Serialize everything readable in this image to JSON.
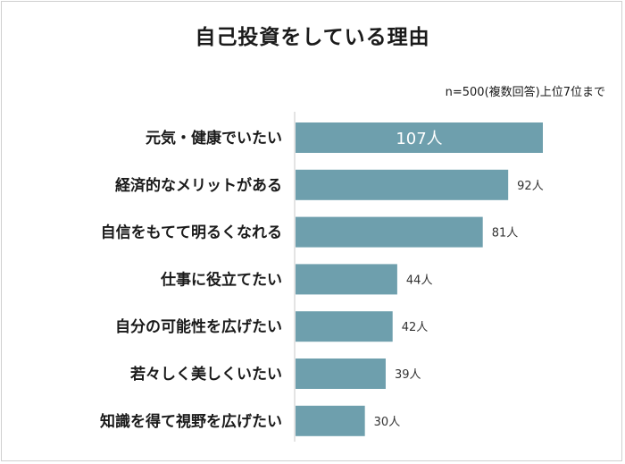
{
  "title": "自己投資をしている理由",
  "note": "n=500(複数回答)上位7位まで",
  "colors": {
    "bar": "#6e9fad",
    "axis": "#c8c8c8"
  },
  "chart_data": {
    "type": "bar",
    "orientation": "horizontal",
    "title": "自己投資をしている理由",
    "unit": "人",
    "categories": [
      "元気・健康でいたい",
      "経済的なメリットがある",
      "自信をもてて明るくなれる",
      "仕事に役立てたい",
      "自分の可能性を広げたい",
      "若々しく美しくいたい",
      "知識を得て視野を広げたい"
    ],
    "values": [
      107,
      92,
      81,
      44,
      42,
      39,
      30
    ],
    "value_labels": [
      "107人",
      "92人",
      "81人",
      "44人",
      "42人",
      "39人",
      "30人"
    ],
    "xlim": [
      0,
      107
    ],
    "grid": false,
    "legend": "none"
  }
}
